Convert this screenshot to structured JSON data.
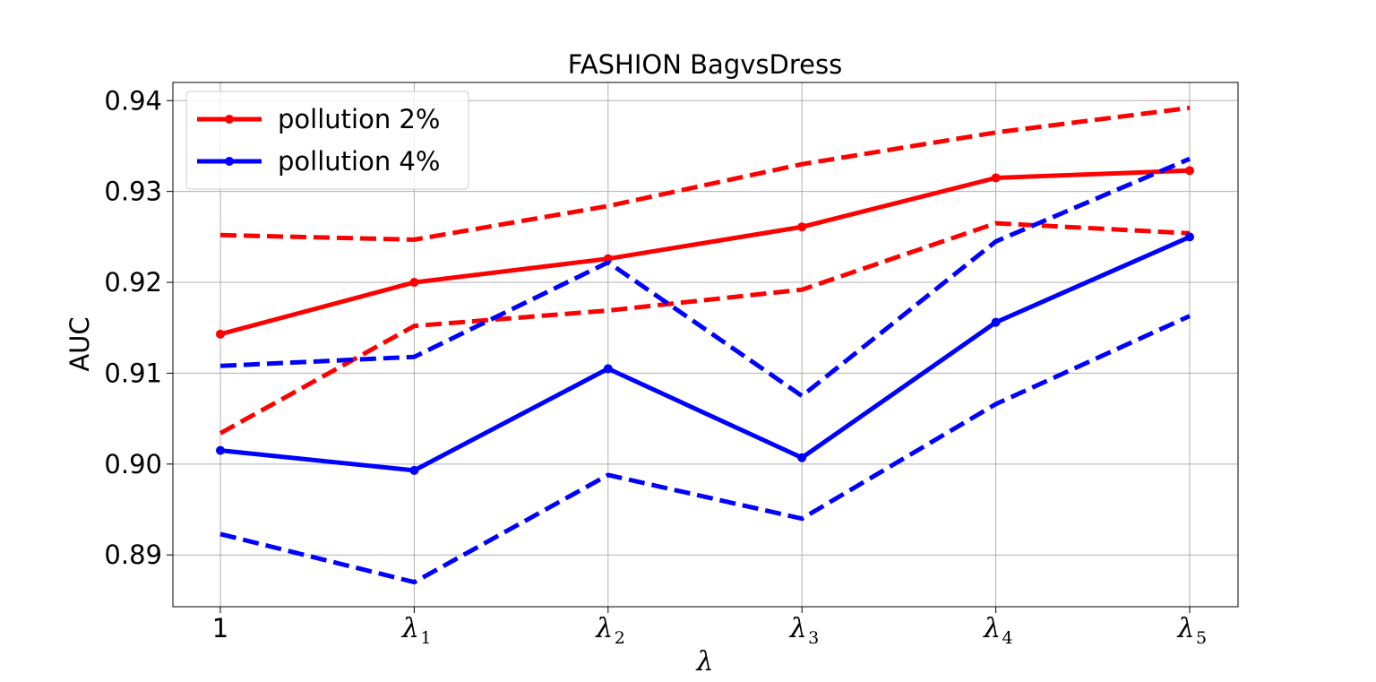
{
  "chart_data": {
    "type": "line",
    "title": "FASHION BagvsDress",
    "xlabel": "λ",
    "ylabel": "AUC",
    "x_tick_labels": [
      {
        "base": "1",
        "sub": ""
      },
      {
        "base": "λ",
        "sub": "1"
      },
      {
        "base": "λ",
        "sub": "2"
      },
      {
        "base": "λ",
        "sub": "3"
      },
      {
        "base": "λ",
        "sub": "4"
      },
      {
        "base": "λ",
        "sub": "5"
      }
    ],
    "y_ticks": [
      "0.89",
      "0.90",
      "0.91",
      "0.92",
      "0.93",
      "0.94"
    ],
    "ylim": [
      0.8843,
      0.942
    ],
    "grid": true,
    "legend_position": "upper-left",
    "series": [
      {
        "name": "pollution 2%",
        "color": "#ff0000",
        "style": "solid",
        "markers": true,
        "values": [
          0.9143,
          0.92,
          0.9226,
          0.9261,
          0.9315,
          0.9323
        ]
      },
      {
        "color": "#ff0000",
        "style": "dashed",
        "markers": false,
        "values": [
          0.9252,
          0.9247,
          0.9284,
          0.933,
          0.9365,
          0.9392
        ]
      },
      {
        "color": "#ff0000",
        "style": "dashed",
        "markers": false,
        "values": [
          0.9034,
          0.9152,
          0.9169,
          0.9192,
          0.9265,
          0.9254
        ]
      },
      {
        "name": "pollution 4%",
        "color": "#0000ff",
        "style": "solid",
        "markers": true,
        "values": [
          0.9015,
          0.8993,
          0.9105,
          0.9007,
          0.9156,
          0.925
        ]
      },
      {
        "color": "#0000ff",
        "style": "dashed",
        "markers": false,
        "values": [
          0.9108,
          0.9118,
          0.9222,
          0.9075,
          0.9245,
          0.9336
        ]
      },
      {
        "color": "#0000ff",
        "style": "dashed",
        "markers": false,
        "values": [
          0.8923,
          0.887,
          0.8988,
          0.894,
          0.9066,
          0.9163
        ]
      }
    ]
  }
}
